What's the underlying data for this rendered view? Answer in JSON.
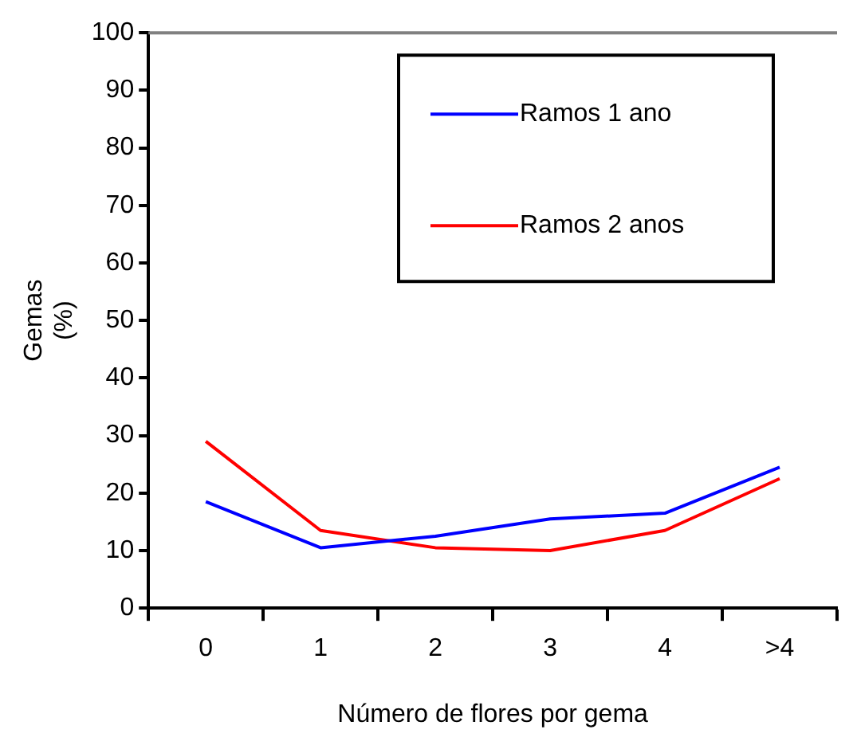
{
  "chart_data": {
    "type": "line",
    "xlabel": "Número de flores por gema",
    "ylabel": "Gemas\n(%)",
    "categories": [
      "0",
      "1",
      "2",
      "3",
      "4",
      ">4"
    ],
    "series": [
      {
        "name": "Ramos 1 ano",
        "color": "#0000ff",
        "values": [
          18.5,
          10.5,
          12.5,
          15.5,
          16.5,
          24.5
        ]
      },
      {
        "name": "Ramos 2 anos",
        "color": "#ff0000",
        "values": [
          29,
          13.5,
          10.5,
          10,
          13.5,
          22.5
        ]
      }
    ],
    "ylim": [
      0,
      100
    ],
    "yticks": [
      0,
      10,
      20,
      30,
      40,
      50,
      60,
      70,
      80,
      90,
      100
    ],
    "grid": false,
    "legend": "top right",
    "marker": "none",
    "line_style": "solid"
  }
}
